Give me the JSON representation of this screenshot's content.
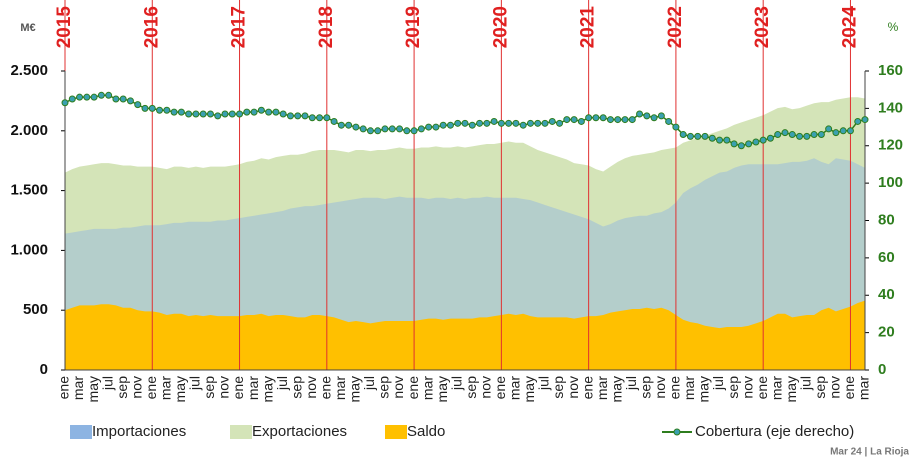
{
  "chart_data": {
    "type": "area",
    "ylabel": "M€",
    "y2label": "%",
    "ylim": [
      0,
      2500
    ],
    "yticks": [
      {
        "value": 0,
        "label": "0"
      },
      {
        "value": 500,
        "label": "500"
      },
      {
        "value": 1000,
        "label": "1.000"
      },
      {
        "value": 1500,
        "label": "1.500"
      },
      {
        "value": 2000,
        "label": "2.000"
      },
      {
        "value": 2500,
        "label": "2.500"
      }
    ],
    "y2lim": [
      0,
      160
    ],
    "y2ticks": [
      0,
      20,
      40,
      60,
      80,
      100,
      120,
      140,
      160
    ],
    "x_groups": [
      "2015",
      "2016",
      "2017",
      "2018",
      "2019",
      "2020",
      "2021",
      "2022",
      "2023",
      "2024"
    ],
    "categories": [
      "ene",
      null,
      "mar",
      null,
      "may",
      null,
      "jul",
      null,
      "sep",
      null,
      "nov",
      null,
      "ene",
      null,
      "mar",
      null,
      "may",
      null,
      "jul",
      null,
      "sep",
      null,
      "nov",
      null,
      "ene",
      null,
      "mar",
      null,
      "may",
      null,
      "jul",
      null,
      "sep",
      null,
      "nov",
      null,
      "ene",
      null,
      "mar",
      null,
      "may",
      null,
      "jul",
      null,
      "sep",
      null,
      "nov",
      null,
      "ene",
      null,
      "mar",
      null,
      "may",
      null,
      "jul",
      null,
      "sep",
      null,
      "nov",
      null,
      "ene",
      null,
      "mar",
      null,
      "may",
      null,
      "jul",
      null,
      "sep",
      null,
      "nov",
      null,
      "ene",
      null,
      "mar",
      null,
      "may",
      null,
      "jul",
      null,
      "sep",
      null,
      "nov",
      null,
      "ene",
      null,
      "mar",
      null,
      "may",
      null,
      "jul",
      null,
      "sep",
      null,
      "nov",
      null,
      "ene",
      null,
      "mar",
      null,
      "may",
      null,
      "jul",
      null,
      "sep",
      null,
      "nov",
      null,
      "ene",
      null,
      "mar"
    ],
    "series": [
      {
        "name": "Importaciones",
        "color": "#8db4e2",
        "values": [
          1140,
          1150,
          1160,
          1170,
          1180,
          1180,
          1180,
          1180,
          1190,
          1190,
          1200,
          1210,
          1210,
          1210,
          1220,
          1230,
          1230,
          1240,
          1240,
          1240,
          1240,
          1250,
          1250,
          1260,
          1270,
          1280,
          1290,
          1300,
          1310,
          1320,
          1330,
          1350,
          1360,
          1370,
          1370,
          1380,
          1390,
          1400,
          1410,
          1420,
          1430,
          1440,
          1440,
          1440,
          1430,
          1440,
          1450,
          1440,
          1440,
          1440,
          1430,
          1440,
          1440,
          1430,
          1440,
          1430,
          1440,
          1440,
          1450,
          1440,
          1440,
          1440,
          1440,
          1430,
          1420,
          1400,
          1380,
          1360,
          1340,
          1320,
          1300,
          1280,
          1260,
          1230,
          1200,
          1220,
          1250,
          1270,
          1280,
          1290,
          1290,
          1310,
          1320,
          1350,
          1400,
          1480,
          1520,
          1550,
          1590,
          1620,
          1650,
          1660,
          1690,
          1710,
          1720,
          1720,
          1720,
          1720,
          1720,
          1730,
          1740,
          1740,
          1750,
          1770,
          1740,
          1720,
          1770,
          1760,
          1750,
          1720,
          1690
        ]
      },
      {
        "name": "Exportaciones",
        "color": "#d4e4b8",
        "values": [
          1650,
          1680,
          1700,
          1710,
          1720,
          1730,
          1730,
          1720,
          1710,
          1710,
          1700,
          1700,
          1700,
          1690,
          1680,
          1700,
          1700,
          1690,
          1700,
          1690,
          1700,
          1700,
          1700,
          1710,
          1720,
          1740,
          1750,
          1770,
          1760,
          1780,
          1790,
          1800,
          1800,
          1810,
          1830,
          1840,
          1840,
          1840,
          1830,
          1820,
          1840,
          1840,
          1830,
          1840,
          1840,
          1850,
          1860,
          1850,
          1850,
          1860,
          1860,
          1870,
          1860,
          1860,
          1870,
          1860,
          1870,
          1880,
          1890,
          1890,
          1900,
          1910,
          1900,
          1900,
          1870,
          1840,
          1820,
          1800,
          1780,
          1760,
          1730,
          1720,
          1710,
          1680,
          1660,
          1700,
          1740,
          1770,
          1790,
          1800,
          1810,
          1820,
          1840,
          1850,
          1860,
          1900,
          1920,
          1940,
          1960,
          1980,
          2000,
          2020,
          2050,
          2070,
          2090,
          2110,
          2130,
          2160,
          2190,
          2200,
          2180,
          2190,
          2210,
          2230,
          2240,
          2240,
          2260,
          2270,
          2280,
          2280,
          2270
        ]
      },
      {
        "name": "Saldo",
        "color": "#ffc000",
        "values": [
          500,
          520,
          540,
          540,
          540,
          550,
          550,
          540,
          520,
          520,
          500,
          490,
          490,
          480,
          460,
          470,
          470,
          450,
          460,
          450,
          460,
          450,
          450,
          450,
          450,
          460,
          460,
          470,
          450,
          460,
          460,
          450,
          440,
          440,
          460,
          460,
          450,
          440,
          420,
          400,
          410,
          400,
          390,
          400,
          410,
          410,
          410,
          410,
          410,
          420,
          430,
          430,
          420,
          430,
          430,
          430,
          430,
          440,
          440,
          450,
          460,
          470,
          460,
          470,
          450,
          440,
          440,
          440,
          440,
          440,
          430,
          440,
          450,
          450,
          460,
          480,
          490,
          500,
          510,
          510,
          520,
          510,
          520,
          500,
          460,
          420,
          400,
          390,
          370,
          360,
          350,
          360,
          360,
          360,
          370,
          390,
          410,
          440,
          470,
          470,
          440,
          450,
          460,
          460,
          500,
          520,
          490,
          510,
          530,
          560,
          580
        ]
      },
      {
        "name": "Cobertura (eje derecho)",
        "color": "#2e7d1e",
        "type": "line",
        "axis": "y2",
        "values": [
          143,
          145,
          146,
          146,
          146,
          147,
          147,
          145,
          145,
          144,
          142,
          140,
          140,
          139,
          139,
          138,
          138,
          137,
          137,
          137,
          137,
          136,
          137,
          137,
          137,
          138,
          138,
          139,
          138,
          138,
          137,
          136,
          136,
          136,
          135,
          135,
          135,
          133,
          131,
          131,
          130,
          129,
          128,
          128,
          129,
          129,
          129,
          128,
          128,
          129,
          130,
          130,
          131,
          131,
          132,
          132,
          131,
          132,
          132,
          133,
          132,
          132,
          132,
          131,
          132,
          132,
          132,
          133,
          132,
          134,
          134,
          133,
          135,
          135,
          135,
          134,
          134,
          134,
          134,
          137,
          136,
          135,
          136,
          133,
          130,
          126,
          125,
          125,
          125,
          124,
          123,
          123,
          121,
          120,
          121,
          122,
          123,
          124,
          126,
          127,
          126,
          125,
          125,
          126,
          126,
          129,
          127,
          128,
          128,
          133,
          134
        ]
      }
    ],
    "legend": "bottom",
    "source": "Mar 24 | La Rioja"
  }
}
